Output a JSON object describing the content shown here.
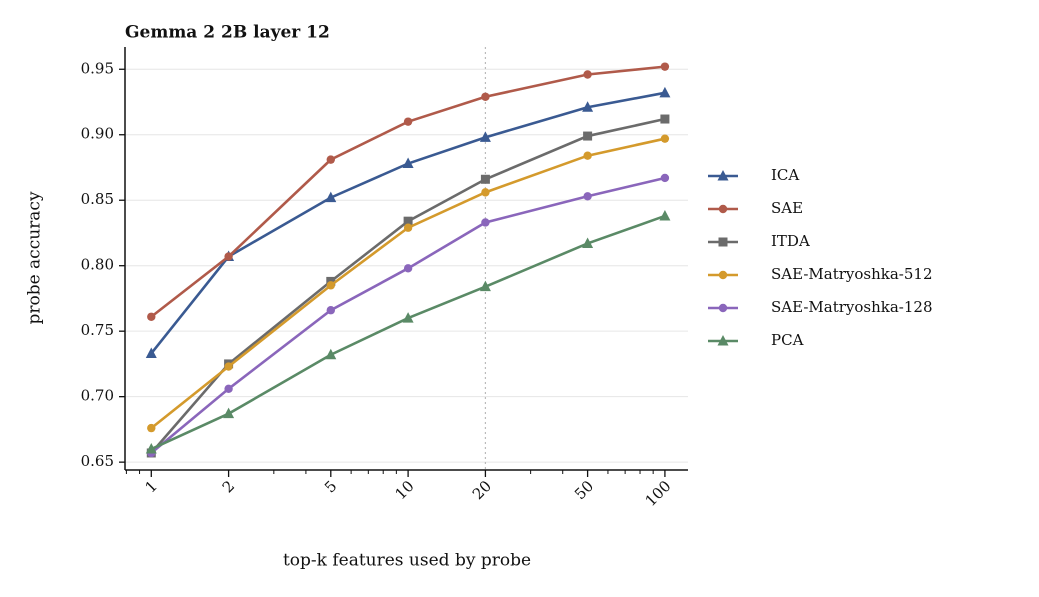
{
  "chart_data": {
    "type": "line",
    "title": "Gemma 2 2B layer 12",
    "xlabel": "top-k features used by probe",
    "ylabel": "probe accuracy",
    "x": [
      1,
      2,
      5,
      10,
      20,
      50,
      100
    ],
    "xscale": "log",
    "xlim": [
      0.79,
      123
    ],
    "xticks": [
      1,
      2,
      5,
      10,
      20,
      50,
      100
    ],
    "xminorticks": [
      0.8,
      0.9,
      3,
      4,
      6,
      7,
      8,
      9,
      30,
      40,
      60,
      70,
      80,
      90
    ],
    "ylim": [
      0.644,
      0.967
    ],
    "yticks": [
      0.65,
      {
        "value": 0.7,
        "label": "0.70"
      },
      0.75,
      {
        "value": 0.8,
        "label": "0.80"
      },
      0.85,
      {
        "value": 0.9,
        "label": "0.90"
      },
      0.95
    ],
    "grid": true,
    "vline": 20,
    "legend": "outside right",
    "series": [
      {
        "name": "ICA",
        "color": "#3a5a92",
        "marker": "triangle",
        "values": [
          0.733,
          0.807,
          0.852,
          0.878,
          0.898,
          0.921,
          0.932
        ]
      },
      {
        "name": "SAE",
        "color": "#b05a4a",
        "marker": "circle",
        "values": [
          0.761,
          0.807,
          0.881,
          0.91,
          0.929,
          0.946,
          0.952
        ]
      },
      {
        "name": "ITDA",
        "color": "#6b6b6b",
        "marker": "square",
        "values": [
          0.657,
          0.725,
          0.788,
          0.834,
          0.866,
          0.899,
          0.912
        ]
      },
      {
        "name": "SAE-Matryoshka-512",
        "color": "#d49a2c",
        "marker": "circle",
        "values": [
          0.676,
          0.723,
          0.785,
          0.829,
          0.856,
          0.884,
          0.897
        ]
      },
      {
        "name": "SAE-Matryoshka-128",
        "color": "#8a66bb",
        "marker": "circle",
        "values": [
          0.657,
          0.706,
          0.766,
          0.798,
          0.833,
          0.853,
          0.867
        ]
      },
      {
        "name": "PCA",
        "color": "#5a8a66",
        "marker": "triangle",
        "values": [
          0.66,
          0.687,
          0.732,
          0.76,
          0.784,
          0.817,
          0.838
        ]
      }
    ]
  }
}
